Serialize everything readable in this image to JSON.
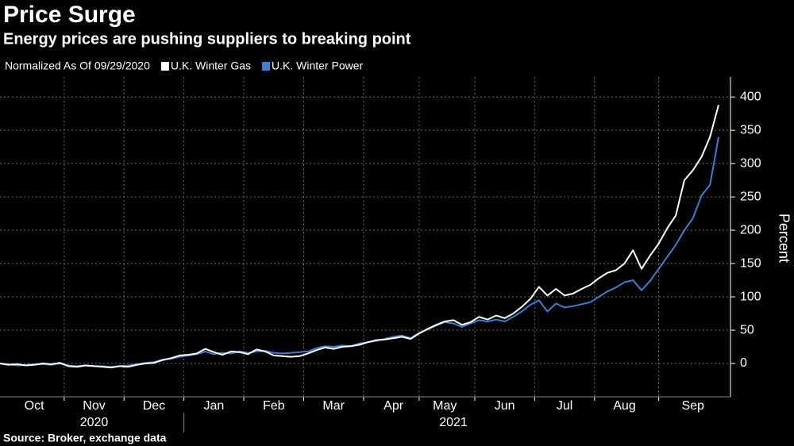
{
  "chart_data": {
    "type": "line",
    "title": "Price Surge",
    "subtitle": "Energy prices are pushing suppliers to breaking point",
    "legend_title": "Normalized As Of 09/29/2020",
    "y_label": "Percent",
    "source": "Source: Broker, exchange data",
    "x_groups": [
      "2020",
      "2021"
    ],
    "categories": [
      null,
      null,
      null,
      null,
      "Oct",
      null,
      null,
      null,
      null,
      null,
      null,
      "Nov",
      null,
      null,
      null,
      null,
      null,
      null,
      "Dec",
      null,
      null,
      null,
      null,
      null,
      null,
      "Jan",
      null,
      null,
      null,
      null,
      null,
      null,
      "Feb",
      null,
      null,
      null,
      null,
      null,
      null,
      "Mar",
      null,
      null,
      null,
      null,
      null,
      null,
      "Apr",
      null,
      null,
      null,
      null,
      null,
      "May",
      null,
      null,
      null,
      null,
      null,
      null,
      "Jun",
      null,
      null,
      null,
      null,
      null,
      null,
      "Jul",
      null,
      null,
      null,
      null,
      null,
      null,
      "Aug",
      null,
      null,
      null,
      null,
      null,
      null,
      null,
      "Sep",
      null,
      null,
      null
    ],
    "series": [
      {
        "name": "U.K. Winter Gas",
        "color": "#ffffff",
        "values": [
          0,
          -2,
          -1,
          -3,
          -2,
          0,
          -1,
          1,
          -4,
          -5,
          -3,
          -4,
          -5,
          -6,
          -4,
          -5,
          -2,
          0,
          1,
          5,
          8,
          12,
          13,
          15,
          22,
          17,
          13,
          18,
          17,
          14,
          21,
          18,
          12,
          11,
          10,
          11,
          15,
          20,
          24,
          22,
          25,
          26,
          28,
          32,
          35,
          36,
          38,
          40,
          37,
          45,
          52,
          58,
          63,
          65,
          58,
          62,
          70,
          66,
          72,
          68,
          75,
          85,
          97,
          115,
          102,
          112,
          102,
          105,
          112,
          118,
          128,
          136,
          140,
          150,
          170,
          142,
          162,
          180,
          203,
          222,
          275,
          290,
          310,
          340,
          388
        ]
      },
      {
        "name": "U.K. Winter Power",
        "color": "#3a7fd5",
        "values": [
          0,
          -1,
          -3,
          -2,
          -1,
          -1,
          -2,
          0,
          -3,
          -4,
          -3,
          -4,
          -4,
          -5,
          -4,
          -3,
          -1,
          1,
          2,
          6,
          7,
          10,
          12,
          14,
          18,
          14,
          16,
          15,
          18,
          16,
          18,
          19,
          16,
          15,
          16,
          17,
          18,
          23,
          26,
          25,
          27,
          26,
          30,
          32,
          34,
          37,
          40,
          42,
          38,
          46,
          51,
          57,
          62,
          60,
          55,
          60,
          65,
          63,
          66,
          63,
          70,
          78,
          88,
          95,
          78,
          90,
          84,
          86,
          89,
          92,
          100,
          108,
          114,
          122,
          125,
          110,
          124,
          142,
          160,
          178,
          200,
          218,
          252,
          268,
          340
        ]
      }
    ],
    "ylim": [
      -50,
      430
    ],
    "yticks": [
      0,
      50,
      100,
      150,
      200,
      250,
      300,
      350,
      400
    ],
    "grid": true,
    "legend_position": "top-left"
  }
}
